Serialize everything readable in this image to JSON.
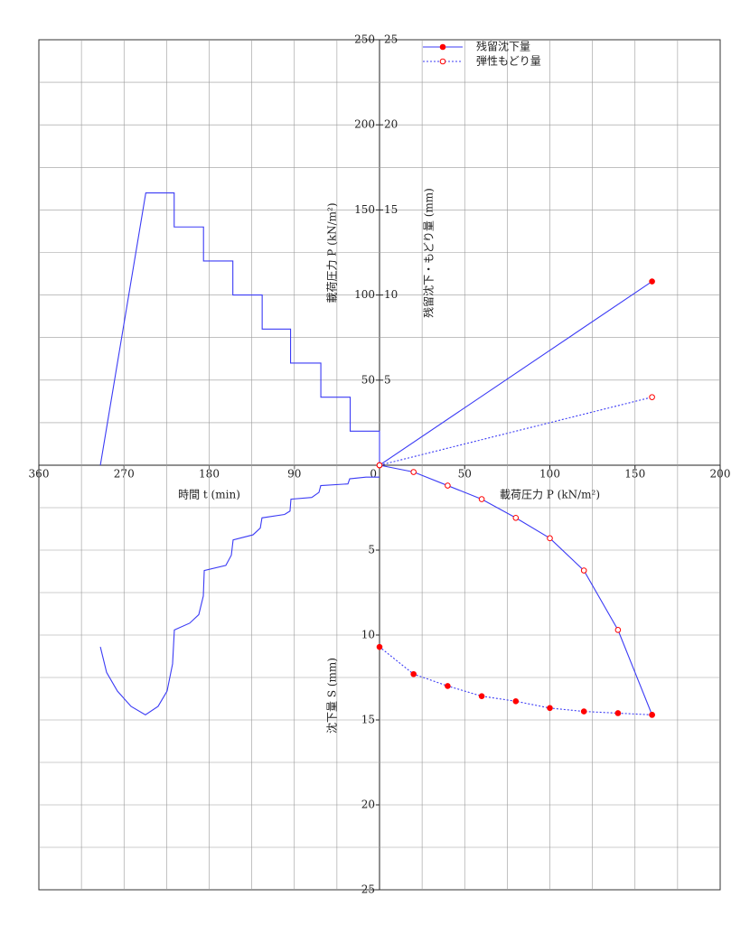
{
  "chart_data": [
    {
      "type": "line",
      "ylabel": "載荷圧力 P (kN/m²)",
      "xlabel": "時間 t (min)",
      "xlim": [
        0,
        360
      ],
      "ylim": [
        0,
        250
      ],
      "xticks": [
        0,
        90,
        180,
        270,
        360
      ],
      "yticks": [
        50,
        100,
        150,
        200,
        250
      ],
      "xgrid": [
        45,
        90,
        135,
        180,
        225,
        270,
        315
      ],
      "ygrid": [
        25,
        50,
        75,
        100,
        125,
        150,
        175,
        200,
        225
      ],
      "series": [
        {
          "color": "#3b3bf5",
          "x": [
            295,
            247,
            217,
            217,
            186,
            186,
            155,
            155,
            124,
            124,
            94,
            94,
            62,
            62,
            31,
            31,
            0,
            0
          ],
          "values": [
            0,
            160,
            160,
            140,
            140,
            120,
            120,
            100,
            100,
            80,
            80,
            60,
            60,
            40,
            40,
            20,
            20,
            0
          ]
        }
      ]
    },
    {
      "type": "line",
      "ylabel": "残留沈下・もどり量 (mm)",
      "xlim": [
        0,
        200
      ],
      "ylim": [
        0,
        25
      ],
      "yticks": [
        5,
        10,
        15,
        20,
        25
      ],
      "xgrid": [
        25,
        50,
        75,
        100,
        125,
        150,
        175
      ],
      "ygrid": [
        2.5,
        5,
        7.5,
        10,
        12.5,
        15,
        17.5,
        20,
        22.5
      ],
      "legend": "top",
      "series": [
        {
          "name": "残留沈下量",
          "color": "#3b3bf5",
          "marker": "filled",
          "marker_color": "#ff0000",
          "dash": false,
          "x": [
            0,
            160
          ],
          "values": [
            0,
            10.8
          ]
        },
        {
          "name": "弾性もどり量",
          "color": "#3b3bf5",
          "marker": "open",
          "marker_color": "#ff0000",
          "dash": true,
          "x": [
            0,
            160
          ],
          "values": [
            0,
            4.0
          ]
        }
      ]
    },
    {
      "type": "line",
      "ylabel": "沈下量 S (mm)",
      "xlim": [
        0,
        360
      ],
      "ylim": [
        0,
        25
      ],
      "yticks": [
        5,
        10,
        15,
        20,
        25
      ],
      "xgrid": [
        45,
        90,
        135,
        180,
        225,
        270,
        315
      ],
      "ygrid": [
        2.5,
        5,
        7.5,
        10,
        12.5,
        15,
        17.5,
        20,
        22.5
      ],
      "series": [
        {
          "color": "#3b3bf5",
          "x": [
            295,
            288.4,
            277,
            262.6,
            247.4,
            234,
            224.5,
            218.7,
            216.8,
            200.6,
            191,
            186.2,
            185.2,
            162.4,
            156.6,
            154.7,
            133.7,
            126,
            124.2,
            100.3,
            94.6,
            93.6,
            71.6,
            64,
            62.1,
            33.4,
            31.5,
            14.3,
            0
          ],
          "values": [
            10.7,
            12.2,
            13.3,
            14.2,
            14.7,
            14.2,
            13.3,
            11.7,
            9.7,
            9.3,
            8.8,
            7.7,
            6.2,
            5.9,
            5.3,
            4.4,
            4.1,
            3.7,
            3.1,
            2.9,
            2.7,
            2.0,
            1.9,
            1.6,
            1.2,
            1.1,
            0.8,
            0.7,
            0.7
          ]
        }
      ]
    },
    {
      "type": "line",
      "xlabel": "載荷圧力 P (kN/m²)",
      "xlim": [
        0,
        200
      ],
      "ylim": [
        0,
        25
      ],
      "xticks": [
        50,
        100,
        150,
        200
      ],
      "xgrid": [
        25,
        50,
        75,
        100,
        125,
        150,
        175
      ],
      "ygrid": [
        2.5,
        5,
        7.5,
        10,
        12.5,
        15,
        17.5,
        20,
        22.5
      ],
      "series": [
        {
          "color": "#3b3bf5",
          "marker": "open",
          "marker_color": "#ff0000",
          "dash": false,
          "x": [
            0,
            20,
            40,
            60,
            80,
            100,
            120,
            140,
            160
          ],
          "values": [
            0,
            0.4,
            1.2,
            2.0,
            3.1,
            4.3,
            6.2,
            9.7,
            14.7
          ]
        },
        {
          "color": "#3b3bf5",
          "marker": "filled",
          "marker_color": "#ff0000",
          "dash": true,
          "x": [
            160,
            140,
            120,
            100,
            80,
            60,
            40,
            20,
            0
          ],
          "values": [
            14.7,
            14.6,
            14.5,
            14.3,
            13.9,
            13.6,
            13.0,
            12.3,
            10.7
          ]
        }
      ]
    }
  ]
}
